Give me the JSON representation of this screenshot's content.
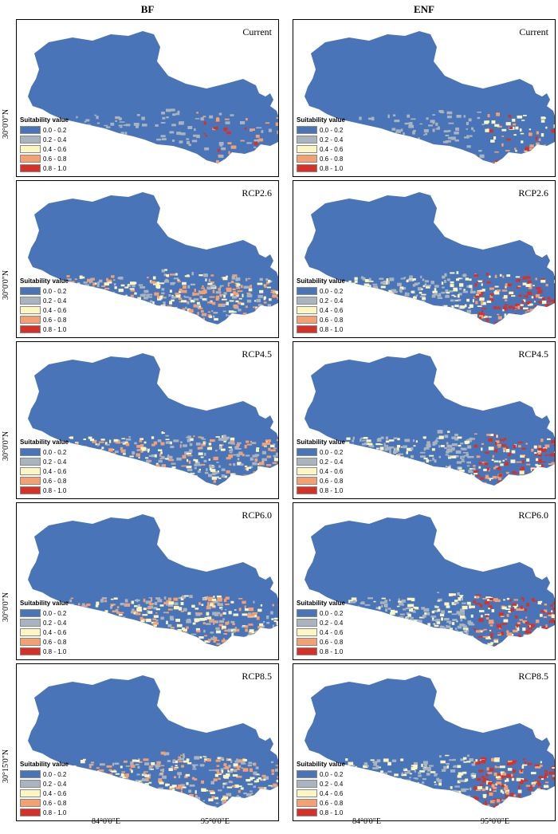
{
  "columns": [
    "BF",
    "ENF"
  ],
  "scenarios": [
    "Current",
    "RCP2.6",
    "RCP4.5",
    "RCP6.0",
    "RCP8.5"
  ],
  "legend": {
    "title": "Suitability value",
    "classes": [
      {
        "label": "0.0 - 0.2",
        "color": "#4a74b8"
      },
      {
        "label": "0.2 - 0.4",
        "color": "#a9b4bf"
      },
      {
        "label": "0.4 - 0.6",
        "color": "#fbf6c2"
      },
      {
        "label": "0.6 - 0.8",
        "color": "#f4a070"
      },
      {
        "label": "0.8 - 1.0",
        "color": "#d73027"
      }
    ]
  },
  "axes": {
    "lat_labels": [
      "30°0'0\"N",
      "30°0'0\"N",
      "30°0'0\"N",
      "30°0'0\"N",
      "30°15'0\"N"
    ],
    "lon_labels": [
      "84°0'0\"E",
      "95°0'0\"E"
    ]
  }
}
